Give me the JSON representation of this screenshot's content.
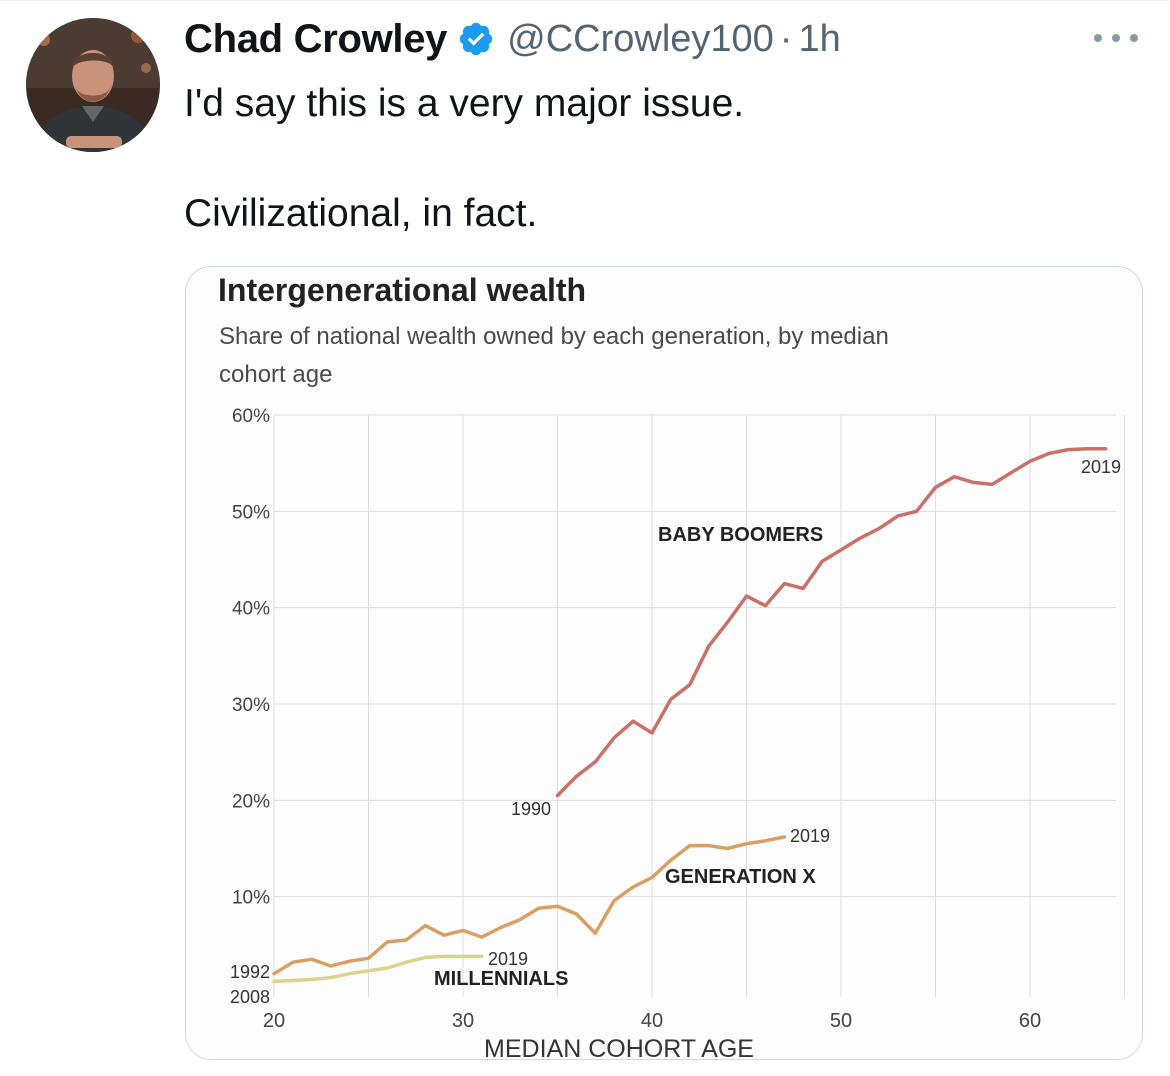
{
  "tweet": {
    "display_name": "Chad Crowley",
    "handle": "@CCrowley100",
    "separator": "·",
    "time": "1h",
    "text_lines": [
      "I'd say this is a very major issue.",
      "Civilizational, in fact."
    ],
    "avatar_icon": "user-avatar-photo",
    "verified_icon": "verified-badge-icon",
    "more_icon": "more-options-icon"
  },
  "colors": {
    "verified": "#1d9bf0",
    "boomers": "#c8706a",
    "genx": "#d9a066",
    "millennials": "#d9d58a"
  },
  "chart_data": {
    "type": "line",
    "title": "Intergenerational wealth",
    "subtitle_lines": [
      "Share of national wealth owned by each generation, by median",
      "cohort age"
    ],
    "xlabel": "MEDIAN COHORT AGE",
    "ylabel": "",
    "xlim": [
      20,
      65
    ],
    "ylim": [
      0,
      60
    ],
    "x_ticks": [
      20,
      30,
      40,
      50,
      60
    ],
    "x_tick_labels": [
      "20",
      "30",
      "40",
      "50",
      "60"
    ],
    "y_ticks": [
      10,
      20,
      30,
      40,
      50,
      60
    ],
    "y_tick_labels": [
      "10%",
      "20%",
      "30%",
      "40%",
      "50%",
      "60%"
    ],
    "grid": true,
    "series": [
      {
        "name": "BABY BOOMERS",
        "start_label": "1990",
        "end_label": "2019",
        "color": "#c8706a",
        "x": [
          35,
          36,
          37,
          38,
          39,
          40,
          41,
          42,
          43,
          44,
          45,
          46,
          47,
          48,
          49,
          50,
          51,
          52,
          53,
          54,
          55,
          56,
          57,
          58,
          59,
          60,
          61,
          62,
          63,
          64
        ],
        "y": [
          20.5,
          22.5,
          24,
          26.5,
          28.2,
          27,
          30.5,
          32,
          36,
          38.5,
          41.2,
          40.2,
          42.5,
          42,
          44.8,
          46,
          47.2,
          48.2,
          49.5,
          50,
          52.5,
          53.6,
          53,
          52.8,
          54,
          55.2,
          56,
          56.4,
          56.5,
          56.5
        ]
      },
      {
        "name": "GENERATION X",
        "start_label": "1992",
        "end_label": "2019",
        "color": "#d9a066",
        "x": [
          20,
          21,
          22,
          23,
          24,
          25,
          26,
          27,
          28,
          29,
          30,
          31,
          32,
          33,
          34,
          35,
          36,
          37,
          38,
          39,
          40,
          41,
          42,
          43,
          44,
          45,
          46,
          47
        ],
        "y": [
          2,
          3.2,
          3.5,
          2.8,
          3.3,
          3.6,
          5.3,
          5.5,
          7,
          6,
          6.5,
          5.8,
          6.8,
          7.6,
          8.8,
          9,
          8.2,
          6.2,
          9.6,
          11,
          12,
          13.8,
          15.3,
          15.3,
          15,
          15.5,
          15.8,
          16.2
        ]
      },
      {
        "name": "MILLENNIALS",
        "start_label": "2008",
        "end_label": "2019",
        "color": "#d9d58a",
        "x": [
          20,
          21,
          22,
          23,
          24,
          25,
          26,
          27,
          28,
          29,
          30,
          31
        ],
        "y": [
          1.2,
          1.3,
          1.4,
          1.6,
          2,
          2.3,
          2.6,
          3.2,
          3.7,
          3.8,
          3.8,
          3.8
        ]
      }
    ]
  }
}
